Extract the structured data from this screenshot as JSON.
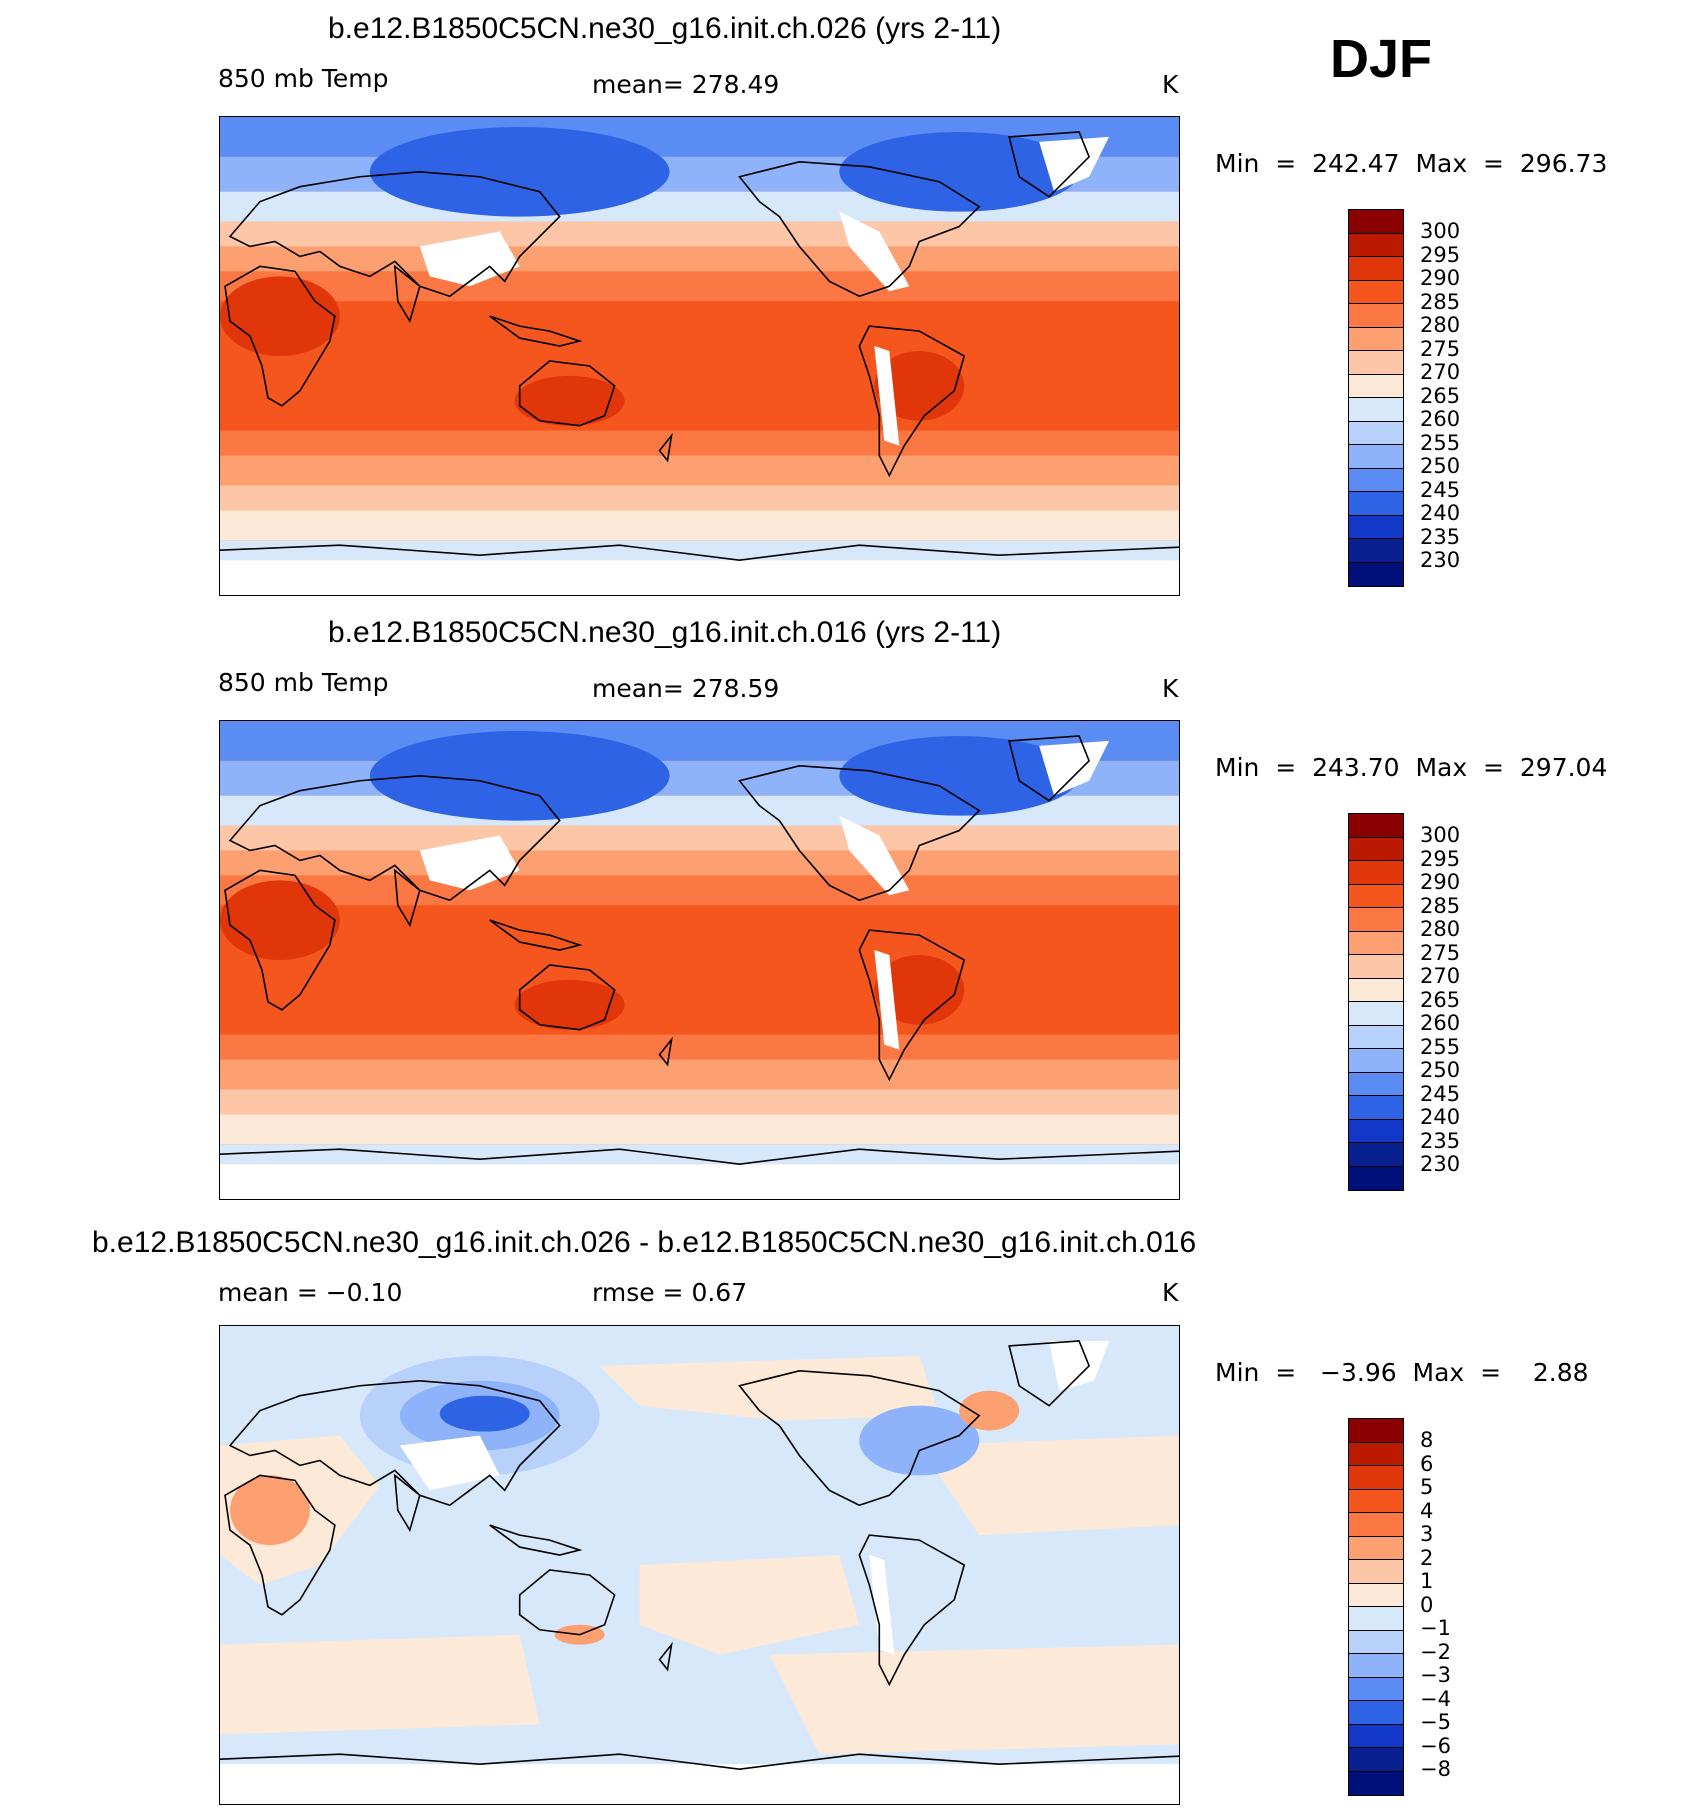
{
  "season": "DJF",
  "panels": [
    {
      "title": "b.e12.B1850C5CN.ne30_g16.init.ch.026 (yrs 2-11)",
      "left_label": "850 mb Temp",
      "center_label": "mean=  278.49",
      "units": "K",
      "minmax": "Min  =  242.47  Max  =  296.73",
      "colorbar": {
        "labels": [
          "300",
          "295",
          "290",
          "285",
          "280",
          "275",
          "270",
          "265",
          "260",
          "255",
          "250",
          "245",
          "240",
          "235",
          "230"
        ],
        "colors": [
          "#8b0000",
          "#bb1a00",
          "#e0360a",
          "#f4561d",
          "#fb7844",
          "#fda071",
          "#fdc6a6",
          "#fde9d8",
          "#d8e8fb",
          "#b7d1fb",
          "#8eb3fb",
          "#5a8cf4",
          "#2e63e6",
          "#1238c8",
          "#082090",
          "#00107a"
        ]
      },
      "field": "absolute"
    },
    {
      "title": "b.e12.B1850C5CN.ne30_g16.init.ch.016 (yrs 2-11)",
      "left_label": "850 mb Temp",
      "center_label": "mean=  278.59",
      "units": "K",
      "minmax": "Min  =  243.70  Max  =  297.04",
      "colorbar": {
        "labels": [
          "300",
          "295",
          "290",
          "285",
          "280",
          "275",
          "270",
          "265",
          "260",
          "255",
          "250",
          "245",
          "240",
          "235",
          "230"
        ],
        "colors": [
          "#8b0000",
          "#bb1a00",
          "#e0360a",
          "#f4561d",
          "#fb7844",
          "#fda071",
          "#fdc6a6",
          "#fde9d8",
          "#d8e8fb",
          "#b7d1fb",
          "#8eb3fb",
          "#5a8cf4",
          "#2e63e6",
          "#1238c8",
          "#082090",
          "#00107a"
        ]
      },
      "field": "absolute"
    },
    {
      "title": "b.e12.B1850C5CN.ne30_g16.init.ch.026 - b.e12.B1850C5CN.ne30_g16.init.ch.016",
      "left_label": "mean =   −0.10",
      "center_label": "rmse =    0.67",
      "units": "K",
      "minmax": "Min  =   −3.96  Max  =    2.88",
      "colorbar": {
        "labels": [
          "8",
          "6",
          "5",
          "4",
          "3",
          "2",
          "1",
          "0",
          "−1",
          "−2",
          "−3",
          "−4",
          "−5",
          "−6",
          "−8"
        ],
        "colors": [
          "#8b0000",
          "#bb1a00",
          "#e0360a",
          "#f4561d",
          "#fb7844",
          "#fda071",
          "#fdc6a6",
          "#fde9d8",
          "#d8e8fb",
          "#b7d1fb",
          "#8eb3fb",
          "#5a8cf4",
          "#2e63e6",
          "#1238c8",
          "#082090",
          "#00107a"
        ]
      },
      "field": "difference"
    }
  ],
  "colors": {
    "land_outline": "#000000",
    "missing": "#ffffff"
  }
}
